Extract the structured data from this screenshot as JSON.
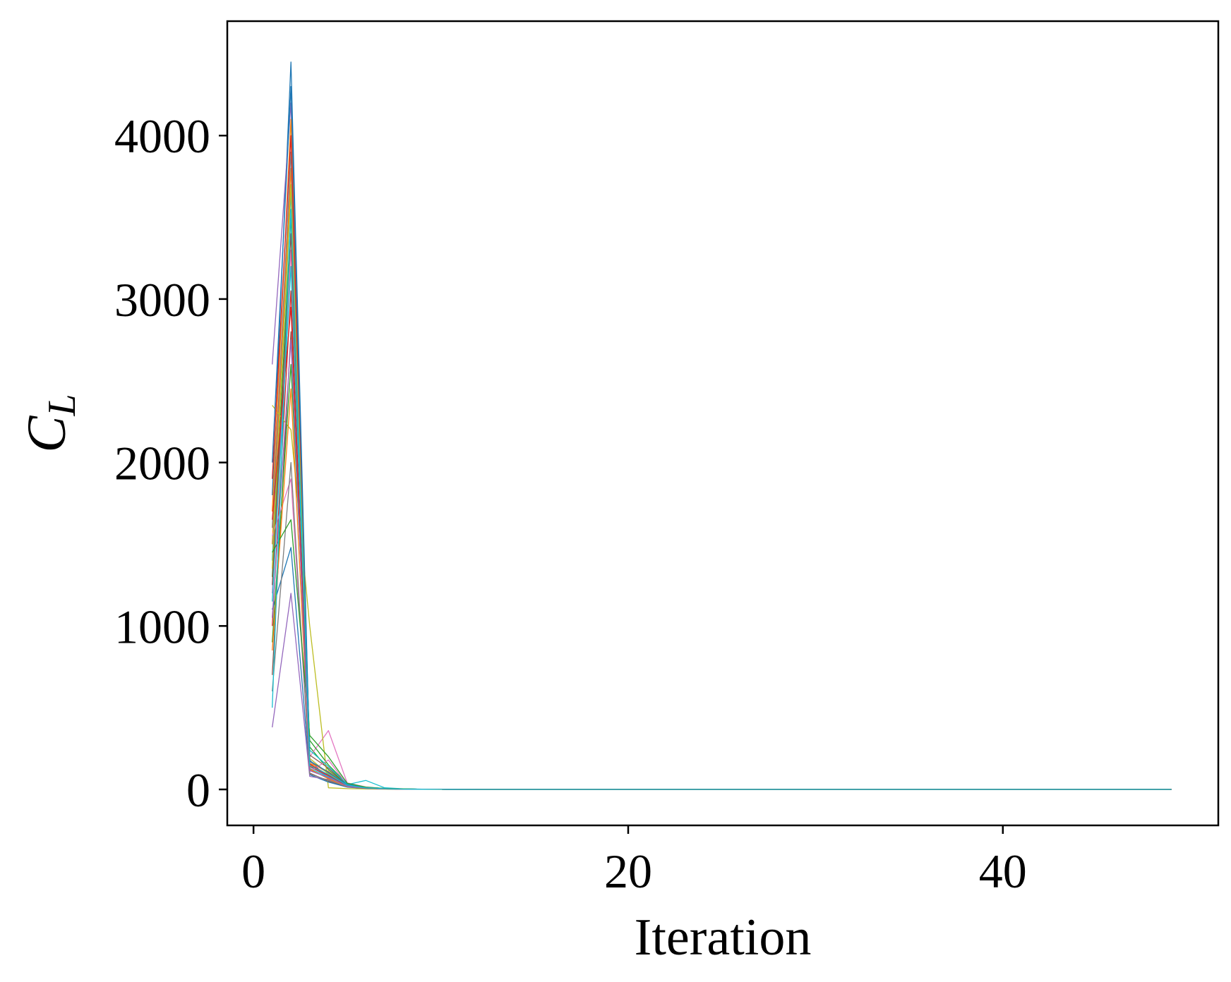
{
  "chart_data": {
    "type": "line",
    "title": "",
    "xlabel": "Iteration",
    "ylabel_main": "C",
    "ylabel_sub": "L",
    "xlim": [
      -1.4,
      51.5
    ],
    "ylim": [
      -220,
      4700
    ],
    "xticks": [
      {
        "value": 0,
        "label": "0"
      },
      {
        "value": 20,
        "label": "20"
      },
      {
        "value": 40,
        "label": "40"
      }
    ],
    "yticks": [
      {
        "value": 0,
        "label": "0"
      },
      {
        "value": 1000,
        "label": "1000"
      },
      {
        "value": 2000,
        "label": "2000"
      },
      {
        "value": 3000,
        "label": "3000"
      },
      {
        "value": 4000,
        "label": "4000"
      }
    ],
    "grid": false,
    "legend": "none",
    "x": [
      1,
      2,
      3,
      4,
      5,
      6,
      7,
      8,
      9,
      10,
      12,
      15,
      20,
      30,
      40,
      49
    ],
    "series": [
      {
        "color": "#1f77b4",
        "values": [
          1800,
          4450,
          180,
          60,
          20,
          8,
          4,
          2,
          1,
          0.5,
          0.3,
          0.1,
          0,
          0,
          0,
          0
        ]
      },
      {
        "color": "#ff7f0e",
        "values": [
          1500,
          3800,
          150,
          90,
          25,
          10,
          5,
          2,
          1,
          0.5,
          0.2,
          0.1,
          0,
          0,
          0,
          0
        ]
      },
      {
        "color": "#2ca02c",
        "values": [
          1300,
          3500,
          260,
          120,
          30,
          12,
          6,
          3,
          1,
          0.5,
          0.2,
          0.1,
          0,
          0,
          0,
          0
        ]
      },
      {
        "color": "#d62728",
        "values": [
          1000,
          3050,
          120,
          70,
          18,
          8,
          4,
          2,
          1,
          0.4,
          0.2,
          0.1,
          0,
          0,
          0,
          0
        ]
      },
      {
        "color": "#9467bd",
        "values": [
          2600,
          4200,
          140,
          80,
          22,
          9,
          4,
          2,
          1,
          0.4,
          0.2,
          0.1,
          0,
          0,
          0,
          0
        ]
      },
      {
        "color": "#8c564b",
        "values": [
          700,
          2800,
          100,
          50,
          15,
          6,
          3,
          2,
          1,
          0.4,
          0.2,
          0.1,
          0,
          0,
          0,
          0
        ]
      },
      {
        "color": "#e377c2",
        "values": [
          1200,
          3300,
          200,
          360,
          40,
          15,
          6,
          3,
          1,
          0.5,
          0.2,
          0.1,
          0,
          0,
          0,
          0
        ]
      },
      {
        "color": "#7f7f7f",
        "values": [
          1600,
          3900,
          170,
          100,
          26,
          10,
          5,
          2,
          1,
          0.5,
          0.2,
          0.1,
          0,
          0,
          0,
          0
        ]
      },
      {
        "color": "#bcbd22",
        "values": [
          2350,
          2200,
          1000,
          10,
          5,
          3,
          2,
          1,
          0.5,
          0.3,
          0.1,
          0,
          0,
          0,
          0,
          0
        ]
      },
      {
        "color": "#17becf",
        "values": [
          1400,
          3650,
          130,
          75,
          30,
          55,
          10,
          4,
          2,
          1,
          0.5,
          0.2,
          0,
          0,
          0,
          0
        ]
      },
      {
        "color": "#1f77b4",
        "values": [
          1100,
          1480,
          90,
          45,
          14,
          6,
          3,
          2,
          1,
          0.4,
          0.2,
          0.1,
          0,
          0,
          0,
          0
        ]
      },
      {
        "color": "#ff7f0e",
        "values": [
          1700,
          4100,
          160,
          110,
          28,
          11,
          5,
          2,
          1,
          0.5,
          0.2,
          0.1,
          0,
          0,
          0,
          0
        ]
      },
      {
        "color": "#2ca02c",
        "values": [
          900,
          2600,
          300,
          150,
          35,
          13,
          6,
          3,
          1,
          0.5,
          0.2,
          0.1,
          0,
          0,
          0,
          0
        ]
      },
      {
        "color": "#d62728",
        "values": [
          1900,
          4000,
          140,
          85,
          24,
          9,
          4,
          2,
          1,
          0.4,
          0.2,
          0.1,
          0,
          0,
          0,
          0
        ]
      },
      {
        "color": "#9467bd",
        "values": [
          380,
          1200,
          80,
          60,
          16,
          7,
          3,
          2,
          1,
          0.4,
          0.2,
          0.1,
          0,
          0,
          0,
          0
        ]
      },
      {
        "color": "#8c564b",
        "values": [
          1250,
          3400,
          210,
          130,
          32,
          12,
          5,
          3,
          1,
          0.5,
          0.2,
          0.1,
          0,
          0,
          0,
          0
        ]
      },
      {
        "color": "#e377c2",
        "values": [
          1550,
          1900,
          110,
          180,
          30,
          12,
          5,
          2,
          1,
          0.5,
          0.2,
          0.1,
          0,
          0,
          0,
          0
        ]
      },
      {
        "color": "#7f7f7f",
        "values": [
          600,
          2000,
          95,
          55,
          18,
          7,
          3,
          2,
          1,
          0.4,
          0.2,
          0.1,
          0,
          0,
          0,
          0
        ]
      },
      {
        "color": "#bcbd22",
        "values": [
          1350,
          3700,
          190,
          95,
          27,
          10,
          5,
          2,
          1,
          0.5,
          0.2,
          0.1,
          0,
          0,
          0,
          0
        ]
      },
      {
        "color": "#17becf",
        "values": [
          1150,
          3200,
          240,
          140,
          33,
          12,
          5,
          3,
          1,
          0.5,
          0.2,
          0.1,
          0,
          0,
          0,
          0
        ]
      },
      {
        "color": "#1f77b4",
        "values": [
          2000,
          4300,
          175,
          105,
          29,
          11,
          5,
          2,
          1,
          0.5,
          0.2,
          0.1,
          0,
          0,
          0,
          0
        ]
      },
      {
        "color": "#ff7f0e",
        "values": [
          850,
          2450,
          125,
          65,
          19,
          8,
          4,
          2,
          1,
          0.4,
          0.2,
          0.1,
          0,
          0,
          0,
          0
        ]
      },
      {
        "color": "#2ca02c",
        "values": [
          1450,
          1650,
          330,
          200,
          38,
          14,
          6,
          3,
          1,
          0.5,
          0.2,
          0.1,
          0,
          0,
          0,
          0
        ]
      },
      {
        "color": "#d62728",
        "values": [
          1650,
          2950,
          155,
          88,
          23,
          9,
          4,
          2,
          1,
          0.4,
          0.2,
          0.1,
          0,
          0,
          0,
          0
        ]
      },
      {
        "color": "#9467bd",
        "values": [
          1050,
          2750,
          115,
          72,
          20,
          8,
          4,
          2,
          1,
          0.4,
          0.2,
          0.1,
          0,
          0,
          0,
          0
        ]
      },
      {
        "color": "#17becf",
        "values": [
          500,
          3550,
          145,
          92,
          26,
          10,
          5,
          2,
          1,
          0.5,
          0.2,
          0.1,
          0,
          0,
          0,
          0
        ]
      }
    ]
  }
}
